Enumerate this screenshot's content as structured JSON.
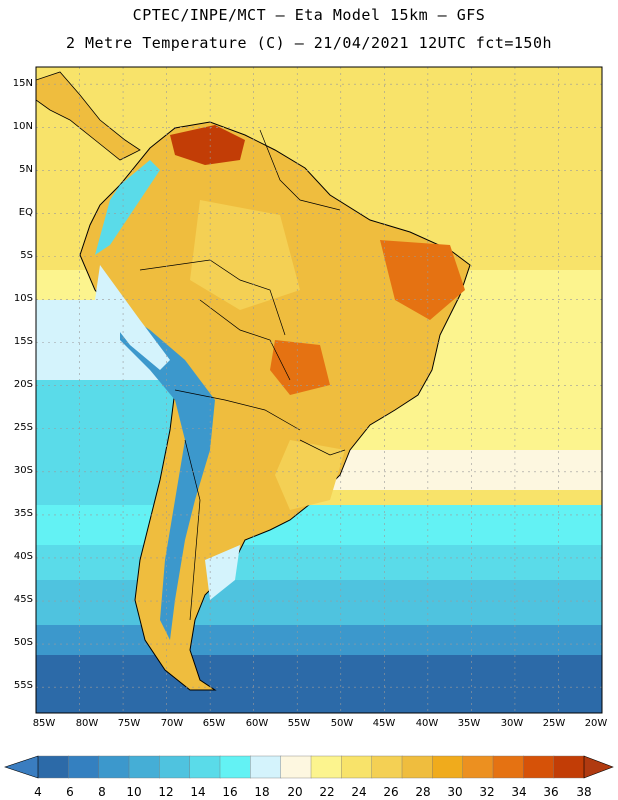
{
  "title": {
    "line1": "CPTEC/INPE/MCT –  Eta Model 15km – GFS",
    "line2": "2 Metre Temperature (C) – 21/04/2021 12UTC fct=150h"
  },
  "map": {
    "variable": "2 Metre Temperature",
    "units": "C",
    "lon_range": [
      -85,
      -20
    ],
    "lat_range": [
      -58,
      17
    ],
    "lat_labels": [
      "15N",
      "10N",
      "5N",
      "EQ",
      "5S",
      "10S",
      "15S",
      "20S",
      "25S",
      "30S",
      "35S",
      "40S",
      "45S",
      "50S",
      "55S"
    ],
    "lon_labels": [
      "85W",
      "80W",
      "75W",
      "70W",
      "65W",
      "60W",
      "55W",
      "50W",
      "45W",
      "40W",
      "35W",
      "30W",
      "25W",
      "20W"
    ]
  },
  "colorbar": {
    "labels": [
      "4",
      "6",
      "8",
      "10",
      "12",
      "14",
      "16",
      "18",
      "20",
      "22",
      "24",
      "26",
      "28",
      "30",
      "32",
      "34",
      "36",
      "38"
    ],
    "colors": [
      "#2c6aa8",
      "#3480c0",
      "#3c98cc",
      "#45aed6",
      "#4fc3df",
      "#5adbe9",
      "#63f2f4",
      "#d4f3fc",
      "#fdf7e0",
      "#fcf48e",
      "#f8e36a",
      "#f4d054",
      "#efbd3e",
      "#f0ab1c",
      "#ec9020",
      "#e57212",
      "#d65208",
      "#c23d06"
    ],
    "low_color": "#3a7dc0",
    "high_color": "#b03a10"
  }
}
